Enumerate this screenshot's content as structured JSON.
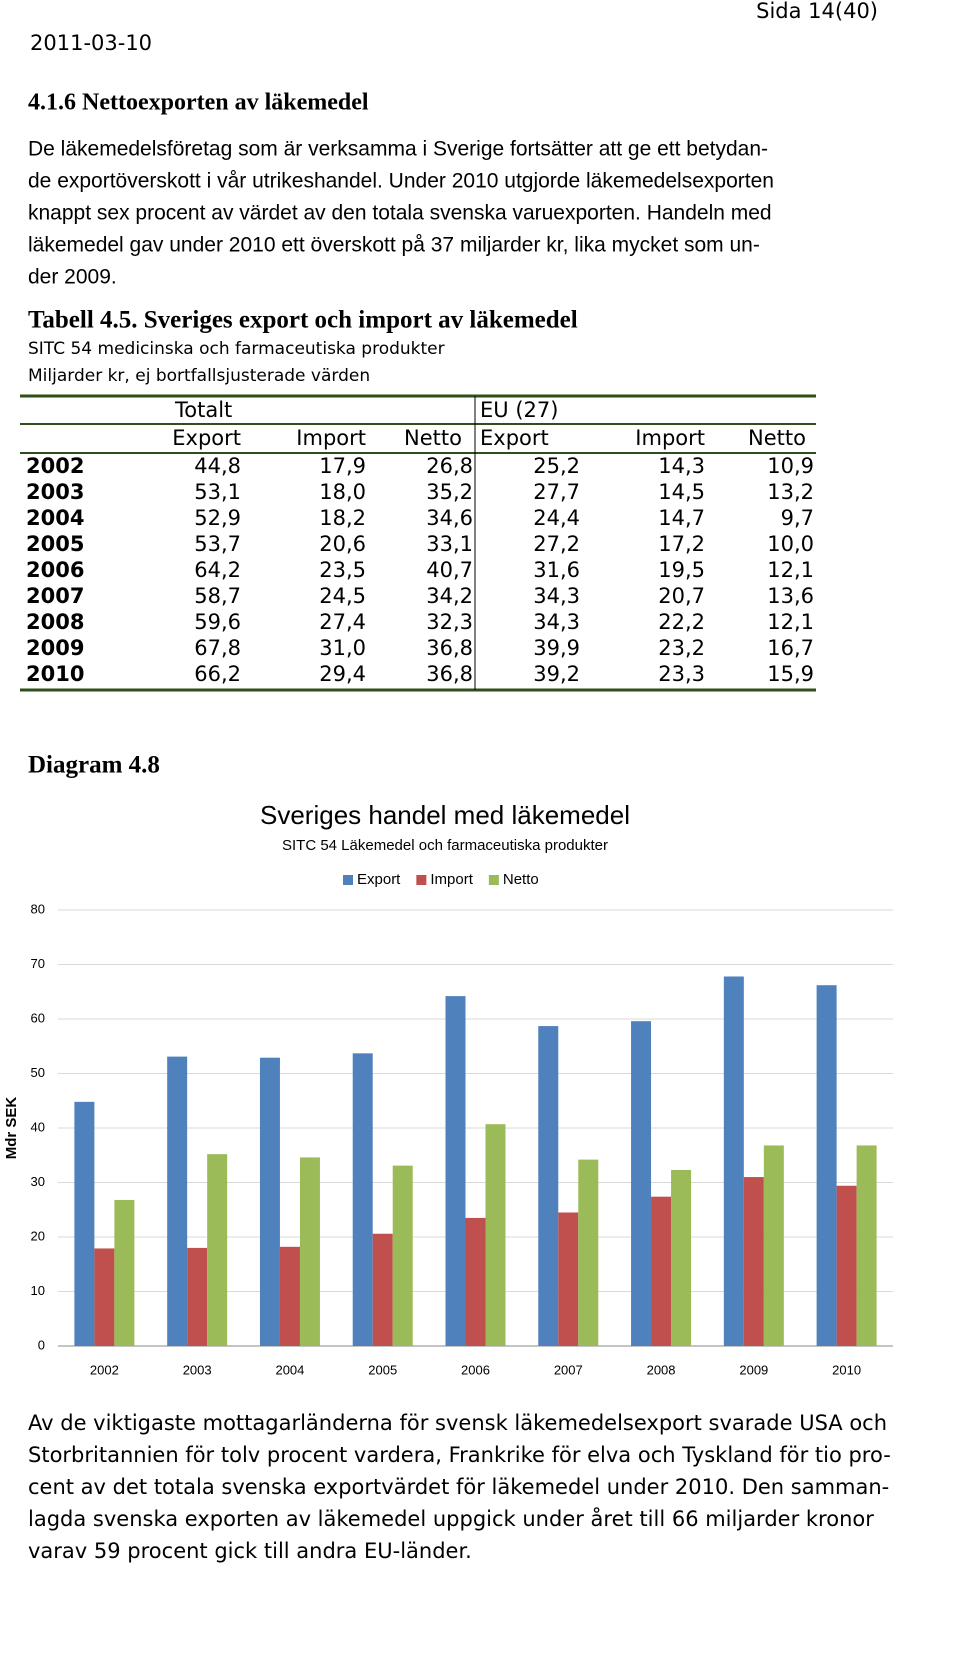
{
  "header": {
    "date": "2011-03-10",
    "page": "Sida 14(40)"
  },
  "section": {
    "heading": "4.1.6 Nettoexporten av läkemedel",
    "paragraph": [
      "De läkemedelsföretag som är verksamma i Sverige fortsätter att ge ett betydan-",
      "de exportöverskott i vår utrikeshandel. Under 2010 utgjorde läkemedelsexporten",
      "knappt sex procent av värdet av den totala svenska varuexporten. Handeln med",
      "läkemedel gav under 2010 ett överskott på 37 miljarder kr, lika mycket som un-",
      "der 2009."
    ]
  },
  "table": {
    "caption": "Tabell 4.5. Sveriges export och import av läkemedel",
    "subtitle": [
      "SITC 54 medicinska och farmaceutiska produkter",
      "Miljarder kr, ej bortfallsjusterade värden"
    ],
    "groups": [
      "Totalt",
      "EU (27)"
    ],
    "columns": [
      "Export",
      "Import",
      "Netto",
      "Export",
      "Import",
      "Netto"
    ],
    "rows": [
      [
        "2002",
        "44,8",
        "17,9",
        "26,8",
        "25,2",
        "14,3",
        "10,9"
      ],
      [
        "2003",
        "53,1",
        "18,0",
        "35,2",
        "27,7",
        "14,5",
        "13,2"
      ],
      [
        "2004",
        "52,9",
        "18,2",
        "34,6",
        "24,4",
        "14,7",
        "9,7"
      ],
      [
        "2005",
        "53,7",
        "20,6",
        "33,1",
        "27,2",
        "17,2",
        "10,0"
      ],
      [
        "2006",
        "64,2",
        "23,5",
        "40,7",
        "31,6",
        "19,5",
        "12,1"
      ],
      [
        "2007",
        "58,7",
        "24,5",
        "34,2",
        "34,3",
        "20,7",
        "13,6"
      ],
      [
        "2008",
        "59,6",
        "27,4",
        "32,3",
        "34,3",
        "22,2",
        "12,1"
      ],
      [
        "2009",
        "67,8",
        "31,0",
        "36,8",
        "39,9",
        "23,2",
        "16,7"
      ],
      [
        "2010",
        "66,2",
        "29,4",
        "36,8",
        "39,2",
        "23,3",
        "15,9"
      ]
    ]
  },
  "diagram_label": "Diagram 4.8",
  "chart_data": {
    "type": "bar",
    "title": "Sveriges handel med läkemedel",
    "subtitle": "SITC 54 Läkemedel och farmaceutiska produkter",
    "ylabel": "Mdr SEK",
    "categories": [
      "2002",
      "2003",
      "2004",
      "2005",
      "2006",
      "2007",
      "2008",
      "2009",
      "2010"
    ],
    "series": [
      {
        "name": "Export",
        "color": "#4f81bd",
        "values": [
          44.8,
          53.1,
          52.9,
          53.7,
          64.2,
          58.7,
          59.6,
          67.8,
          66.2
        ]
      },
      {
        "name": "Import",
        "color": "#c0504d",
        "values": [
          17.9,
          18.0,
          18.2,
          20.6,
          23.5,
          24.5,
          27.4,
          31.0,
          29.4
        ]
      },
      {
        "name": "Netto",
        "color": "#9bbb59",
        "values": [
          26.8,
          35.2,
          34.6,
          33.1,
          40.7,
          34.2,
          32.3,
          36.8,
          36.8
        ]
      }
    ],
    "ylim": [
      0,
      80
    ],
    "yticks": [
      0,
      10,
      20,
      30,
      40,
      50,
      60,
      70,
      80
    ],
    "grid": true,
    "legend": "top"
  },
  "closing": [
    "Av de viktigaste mottagarländerna för svensk läkemedelsexport svarade USA och",
    "Storbritannien för tolv procent vardera, Frankrike för elva och Tyskland för tio pro-",
    "cent av det totala svenska exportvärdet för läkemedel under 2010. Den samman-",
    "lagda svenska exporten av läkemedel uppgick under året till 66 miljarder kronor",
    "varav 59 procent gick till andra EU-länder."
  ]
}
